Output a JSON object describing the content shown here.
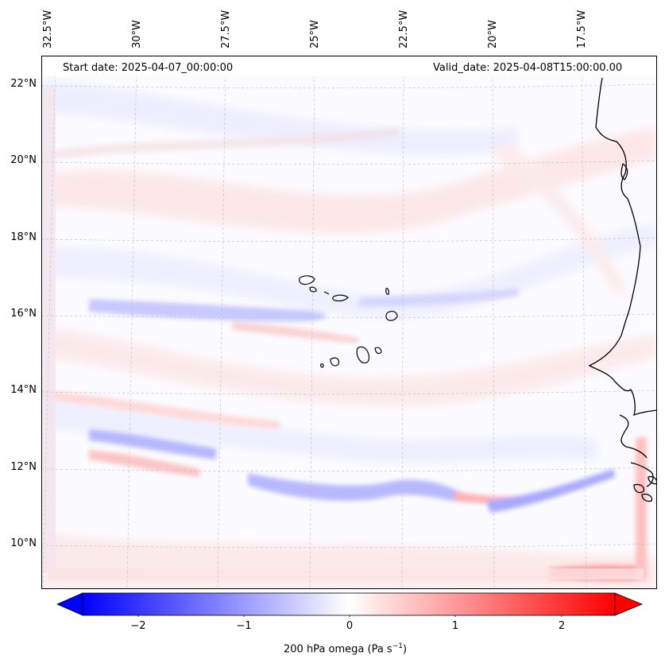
{
  "map": {
    "start_date": "Start date: 2025-04-07_00:00:00",
    "valid_date": "Valid_date: 2025-04-08T15:00:00.00",
    "lon_labels": [
      "32.5°W",
      "30°W",
      "27.5°W",
      "25°W",
      "22.5°W",
      "20°W",
      "17.5°W"
    ],
    "lat_labels": [
      "22°N",
      "20°N",
      "18°N",
      "16°N",
      "14°N",
      "12°N",
      "10°N"
    ],
    "colors": {
      "negative": "#0000ff",
      "positive": "#ff0000",
      "neutral": "#ffffff",
      "coast": "#000000",
      "grid": "#bbbbbb"
    }
  },
  "colorbar": {
    "ticks": [
      "−2",
      "−1",
      "0",
      "1",
      "2"
    ],
    "label_main": "200 hPa omega (Pa s",
    "label_sup": "−1",
    "label_end": ")"
  }
}
